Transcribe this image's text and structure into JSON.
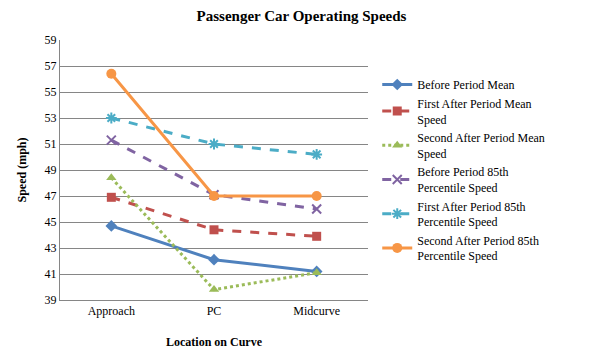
{
  "chart_data": {
    "type": "line",
    "title": "Passenger Car Operating Speeds",
    "x_label": "Location on Curve",
    "y_label": "Speed (mph)",
    "categories": [
      "Approach",
      "PC",
      "Midcurve"
    ],
    "series": [
      {
        "name": "Before Period Mean",
        "color": "#4F81BD",
        "line_style": "solid",
        "marker": "diamond",
        "values": [
          44.7,
          42.1,
          41.2
        ]
      },
      {
        "name": "First After Period Mean Speed",
        "color": "#C0504D",
        "line_style": "dash",
        "marker": "square",
        "values": [
          46.9,
          44.4,
          43.9
        ]
      },
      {
        "name": "Second After Period Mean Speed",
        "color": "#9BBB59",
        "line_style": "dot",
        "marker": "triangle-up",
        "values": [
          48.4,
          39.8,
          41.1
        ]
      },
      {
        "name": "Before Period 85th Percentile Speed",
        "color": "#8064A2",
        "line_style": "dash",
        "marker": "x",
        "values": [
          51.3,
          47.1,
          46.0
        ]
      },
      {
        "name": "First After Period 85th Percentile Speed",
        "color": "#4BACC6",
        "line_style": "dash",
        "marker": "asterisk",
        "values": [
          53.0,
          51.0,
          50.2
        ]
      },
      {
        "name": "Second After Period 85th Percentile Speed",
        "color": "#F79646",
        "line_style": "solid",
        "marker": "circle",
        "values": [
          56.4,
          47.0,
          47.0
        ]
      }
    ],
    "ylim": [
      39,
      59
    ],
    "yticks": [
      39,
      41,
      43,
      45,
      47,
      49,
      51,
      53,
      55,
      57,
      59
    ],
    "grid": true,
    "legend": "right"
  }
}
